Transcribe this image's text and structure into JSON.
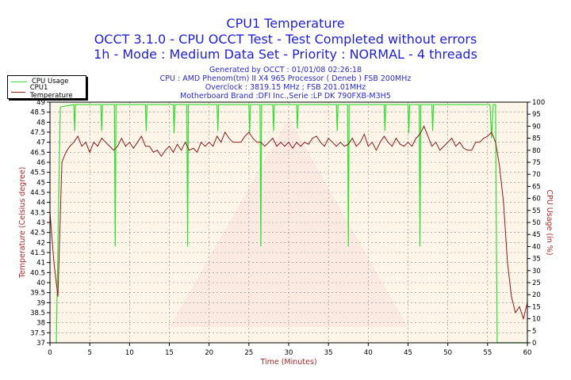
{
  "title": "CPU1 Temperature",
  "subtitle1": "OCCT 3.1.0 - CPU OCCT Test - Test Completed without errors",
  "subtitle2": "1h - Mode : Medium Data Set - Priority : NORMAL - 4 threads",
  "info": [
    "Generated by OCCT : 01/01/08 02:26:18",
    "CPU : AMD Phenom(tm) II X4 965 Processor ( Deneb ) FSB 200MHz",
    "Overclock : 3819.15 MHz ; FSB 201.01MHz",
    "Motherboard Brand :DFI Inc.,Serie :LP DK 790FXB-M3H5"
  ],
  "colors": {
    "usage": "#33dd33",
    "temp": "#8b1a1a",
    "bg": "#fdf6e8",
    "title": "#1f1fd6"
  },
  "chart_data": {
    "type": "line",
    "title": "CPU1 Temperature",
    "xlabel": "Time (Minutes)",
    "ylabel": "Temperature (Celsius degree)",
    "y2label": "CPU Usage (in %)",
    "xlim": [
      0,
      60
    ],
    "ylim": [
      37,
      49
    ],
    "y2lim": [
      0,
      100
    ],
    "xticks": [
      "0",
      "5",
      "10",
      "15",
      "20",
      "25",
      "30",
      "35",
      "40",
      "45",
      "50",
      "55",
      "60"
    ],
    "yticks": [
      "37",
      "37.5",
      "38",
      "38.5",
      "39",
      "39.5",
      "40",
      "40.5",
      "41",
      "41.5",
      "42",
      "42.5",
      "43",
      "43.5",
      "44",
      "44.5",
      "45",
      "45.5",
      "46",
      "46.5",
      "47",
      "47.5",
      "48",
      "48.5",
      "49"
    ],
    "y2ticks": [
      "0",
      "5",
      "10",
      "15",
      "20",
      "25",
      "30",
      "35",
      "40",
      "45",
      "50",
      "55",
      "60",
      "65",
      "70",
      "75",
      "80",
      "85",
      "90",
      "95",
      "100"
    ],
    "grid": true,
    "legend": {
      "placement": "top-left",
      "entries": [
        "CPU Usage",
        "CPU1 Temperature"
      ]
    },
    "series": [
      {
        "name": "CPU1 Temperature",
        "axis": "left",
        "t_start": 0,
        "t_step": 0.5,
        "values": [
          43.5,
          41,
          39.3,
          46,
          46.5,
          46.8,
          47,
          47.3,
          46.8,
          47,
          46.5,
          47,
          46.8,
          47.2,
          47,
          46.8,
          46.6,
          46.8,
          47.2,
          46.8,
          47,
          46.7,
          47,
          47.3,
          46.8,
          46.8,
          46.5,
          46.6,
          46.3,
          46.6,
          46.8,
          46.5,
          46.9,
          46.6,
          47,
          46.6,
          46.7,
          46.5,
          47,
          46.8,
          47,
          46.8,
          47.3,
          47,
          47.5,
          47.2,
          47,
          47,
          47,
          47.3,
          47.5,
          47.2,
          47,
          47,
          46.8,
          47,
          47.2,
          46.8,
          47,
          46.8,
          47,
          46.7,
          47,
          46.8,
          47,
          46.9,
          47.2,
          47.3,
          47,
          46.8,
          47.2,
          47,
          46.8,
          47,
          46.8,
          46.9,
          47.2,
          46.8,
          47,
          47.4,
          46.8,
          47,
          46.6,
          47,
          47.3,
          47,
          46.8,
          47.2,
          46.9,
          46.8,
          47,
          46.8,
          47.2,
          47.4,
          47.8,
          47.3,
          46.8,
          47,
          46.6,
          46.8,
          47,
          47.2,
          46.8,
          47,
          46.7,
          46.6,
          46.6,
          47,
          47,
          47.2,
          47.3,
          47.5,
          47,
          45.8,
          44,
          41,
          39.3,
          38.5,
          38.8,
          38.2,
          39
        ]
      },
      {
        "name": "CPU Usage",
        "axis": "right",
        "points": [
          [
            0.8,
            0
          ],
          [
            1.1,
            60
          ],
          [
            1.3,
            98
          ],
          [
            3,
            99
          ],
          [
            3.1,
            88
          ],
          [
            3.2,
            99
          ],
          [
            6.4,
            99
          ],
          [
            6.5,
            88
          ],
          [
            6.6,
            99
          ],
          [
            8.1,
            99
          ],
          [
            8.2,
            40
          ],
          [
            8.3,
            99
          ],
          [
            12,
            99
          ],
          [
            12.1,
            88
          ],
          [
            12.2,
            99
          ],
          [
            15.5,
            99
          ],
          [
            15.6,
            87
          ],
          [
            15.7,
            99
          ],
          [
            17.2,
            99
          ],
          [
            17.3,
            40
          ],
          [
            17.4,
            99
          ],
          [
            21,
            99
          ],
          [
            21.1,
            88
          ],
          [
            21.2,
            99
          ],
          [
            25,
            99
          ],
          [
            25.1,
            87
          ],
          [
            25.2,
            99
          ],
          [
            26.4,
            99
          ],
          [
            26.5,
            40
          ],
          [
            26.6,
            99
          ],
          [
            28,
            99
          ],
          [
            28.1,
            88
          ],
          [
            28.2,
            99
          ],
          [
            31,
            99
          ],
          [
            31.1,
            89
          ],
          [
            31.2,
            99
          ],
          [
            36,
            99
          ],
          [
            36.1,
            88
          ],
          [
            36.2,
            99
          ],
          [
            37.4,
            99
          ],
          [
            37.5,
            40
          ],
          [
            37.6,
            99
          ],
          [
            42,
            99
          ],
          [
            42.1,
            88
          ],
          [
            42.2,
            99
          ],
          [
            45,
            99
          ],
          [
            45.1,
            87
          ],
          [
            45.2,
            99
          ],
          [
            46.4,
            99
          ],
          [
            46.5,
            40
          ],
          [
            46.6,
            99
          ],
          [
            48,
            99
          ],
          [
            48.1,
            88
          ],
          [
            48.2,
            99
          ],
          [
            55.3,
            99
          ],
          [
            55.5,
            85
          ],
          [
            55.7,
            99
          ],
          [
            56,
            99
          ],
          [
            56.2,
            0
          ],
          [
            60,
            0
          ]
        ]
      }
    ]
  }
}
